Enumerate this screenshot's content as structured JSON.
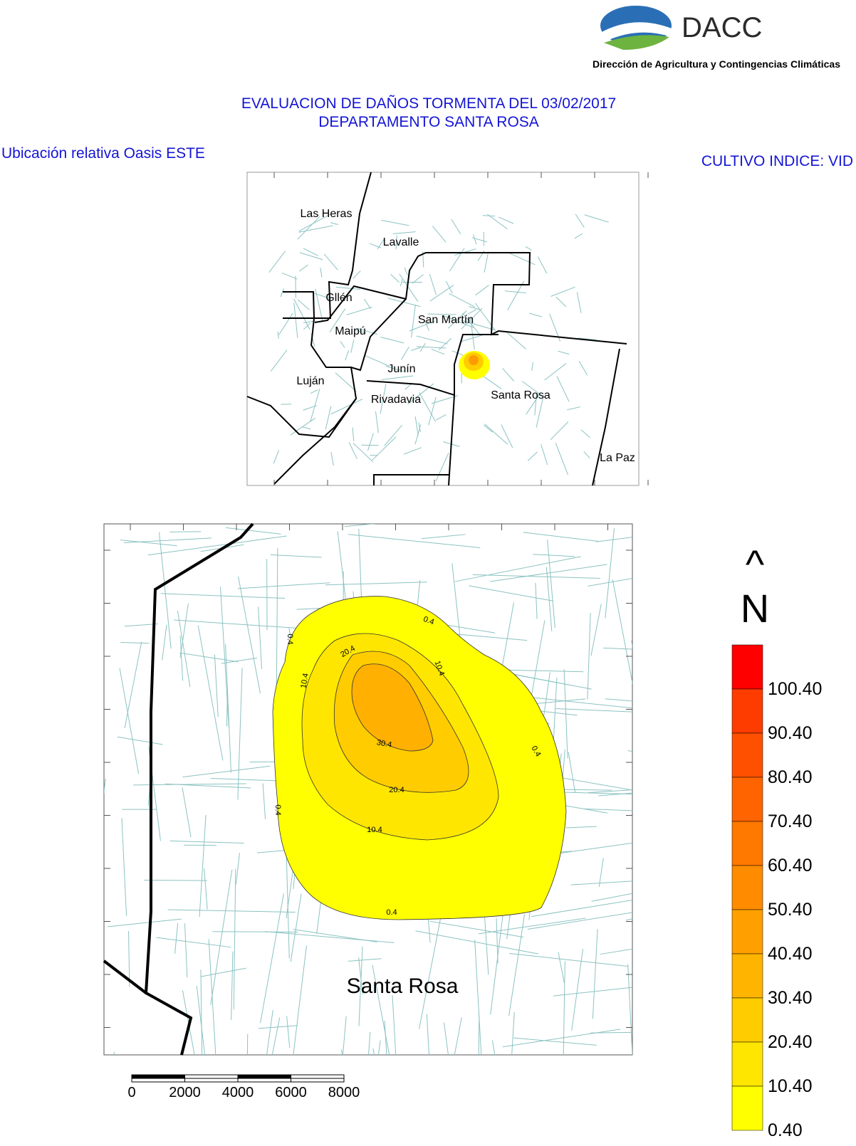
{
  "header": {
    "logo_text": "DACC",
    "organization": "Dirección de Agricultura y Contingencias Climáticas"
  },
  "title": {
    "line1": "EVALUACION DE DAÑOS TORMENTA DEL 03/02/2017",
    "line2": "DEPARTAMENTO SANTA ROSA"
  },
  "inset": {
    "caption": "Ubicación relativa Oasis ESTE",
    "labels": [
      "Las Heras",
      "Lavalle",
      "Gllén",
      "Maipú",
      "San Martín",
      "Junín",
      "Luján",
      "Rivadavia",
      "Santa Rosa",
      "La Paz"
    ]
  },
  "crop": "CULTIVO INDICE: VID",
  "main_map": {
    "place_label": "Santa Rosa",
    "contour_labels": [
      "0.4",
      "0.4",
      "0.4",
      "0.4",
      "0.4",
      "10.4",
      "10.4",
      "10.4",
      "20.4",
      "20.4",
      "30.4"
    ]
  },
  "north": {
    "arrow": "^",
    "letter": "N"
  },
  "legend": {
    "levels": [
      {
        "label": "100.40",
        "color": "#ff2a00"
      },
      {
        "label": "90.40",
        "color": "#ff3c00"
      },
      {
        "label": "80.40",
        "color": "#ff5000"
      },
      {
        "label": "70.40",
        "color": "#ff6400"
      },
      {
        "label": "60.40",
        "color": "#ff7800"
      },
      {
        "label": "50.40",
        "color": "#ff8c00"
      },
      {
        "label": "40.40",
        "color": "#ffa000"
      },
      {
        "label": "30.40",
        "color": "#ffb400"
      },
      {
        "label": "20.40",
        "color": "#ffcc00"
      },
      {
        "label": "10.40",
        "color": "#ffe600"
      },
      {
        "label": "0.40",
        "color": "#ffff00"
      }
    ],
    "top_color": "#ff0000"
  },
  "scale_bar": {
    "labels": [
      0,
      2000,
      4000,
      6000,
      8000
    ]
  }
}
